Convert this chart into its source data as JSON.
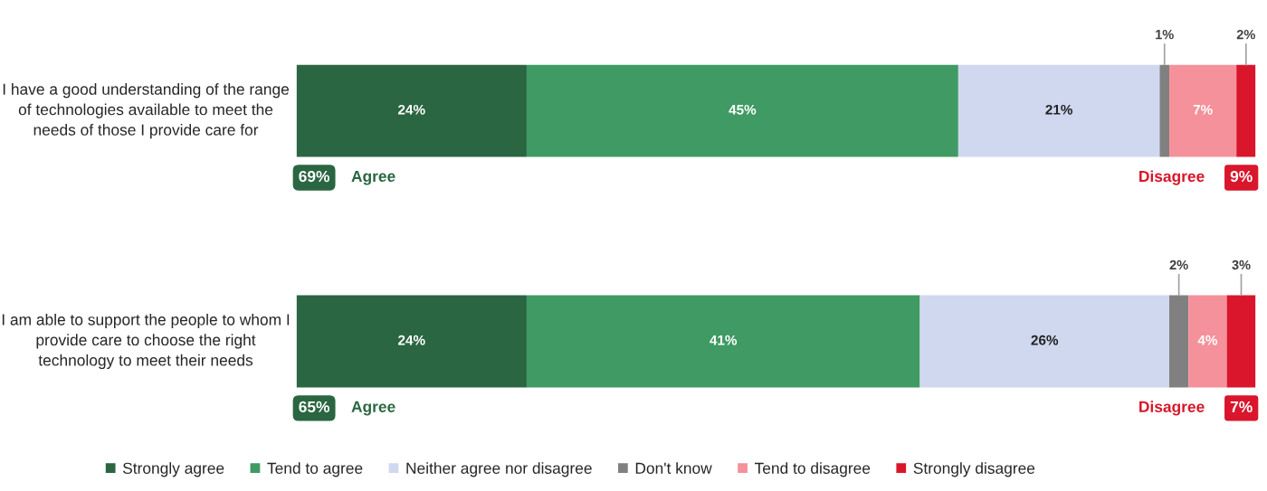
{
  "chart_data": {
    "type": "bar",
    "orientation": "horizontal",
    "stacked": true,
    "legend": "bottom",
    "categories": [
      "I have a good understanding of the range of technologies available to meet the needs of those I provide care for",
      "I am able to support the people to whom I provide care to choose the right technology to meet their needs"
    ],
    "series": [
      {
        "name": "Strongly agree",
        "color": "#2a6641",
        "values": [
          24,
          24
        ],
        "value_labels": [
          "24%",
          "24%"
        ]
      },
      {
        "name": "Tend to agree",
        "color": "#3f9a63",
        "values": [
          45,
          41
        ],
        "value_labels": [
          "45%",
          "41%"
        ]
      },
      {
        "name": "Neither agree nor disagree",
        "color": "#d0d8ef",
        "values": [
          21,
          26
        ],
        "value_labels": [
          "21%",
          "26%"
        ]
      },
      {
        "name": "Don't know",
        "color": "#808080",
        "values": [
          1,
          2
        ],
        "value_labels": [
          "1%",
          "2%"
        ]
      },
      {
        "name": "Tend to disagree",
        "color": "#f4919a",
        "values": [
          7,
          4
        ],
        "value_labels": [
          "7%",
          "4%"
        ]
      },
      {
        "name": "Strongly disagree",
        "color": "#d9162b",
        "values": [
          2,
          3
        ],
        "value_labels": [
          "2%",
          "3%"
        ]
      }
    ],
    "annotations": [
      "69%",
      "Agree",
      "Disagree",
      "9%",
      "65%",
      "Agree",
      "Disagree",
      "7%"
    ]
  }
}
